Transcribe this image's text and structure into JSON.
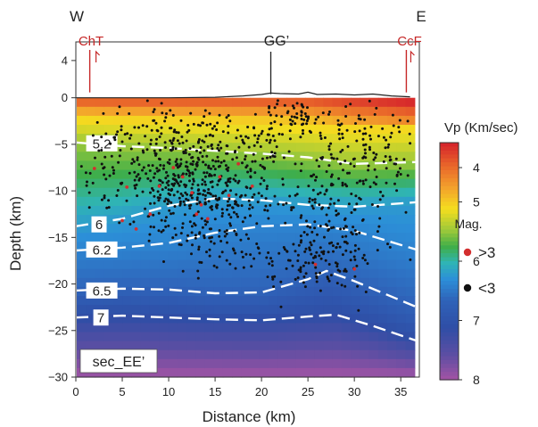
{
  "chart_data": {
    "type": "heatmap",
    "xlabel": "Distance (km)",
    "ylabel": "Depth (km)",
    "xlim": [
      0,
      37
    ],
    "ylim": [
      -30,
      6
    ],
    "x_ticks": [
      0,
      5,
      10,
      15,
      20,
      25,
      30,
      35
    ],
    "y_ticks": [
      4,
      0,
      -5,
      -10,
      -15,
      -20,
      -25,
      -30
    ],
    "x_tick_labels": [
      "0",
      "5",
      "10",
      "15",
      "20",
      "25",
      "30",
      "35"
    ],
    "y_tick_labels": [
      "4",
      "0",
      "−5",
      "−10",
      "−15",
      "−20",
      "−25",
      "−30"
    ],
    "section_label": "sec_EE’",
    "end_labels": {
      "west": "W",
      "east": "E"
    },
    "faults": [
      {
        "name": "ChT",
        "x": 1.5,
        "color": "#c62828"
      },
      {
        "name": "CcF",
        "x": 35.6,
        "color": "#c62828"
      }
    ],
    "station": {
      "name": "GG’",
      "x": 21
    },
    "topography": [
      [
        0,
        0
      ],
      [
        5,
        0
      ],
      [
        10,
        0
      ],
      [
        15,
        0.05
      ],
      [
        18,
        0.2
      ],
      [
        20,
        0.35
      ],
      [
        21,
        0.5
      ],
      [
        22,
        0.45
      ],
      [
        24,
        0.4
      ],
      [
        25,
        0.6
      ],
      [
        26,
        0.35
      ],
      [
        28,
        0.4
      ],
      [
        30,
        0.3
      ],
      [
        32,
        0.4
      ],
      [
        34,
        0.2
      ],
      [
        36,
        0.1
      ]
    ],
    "colorbar": {
      "title": "Vp (Km/sec)",
      "min": 4,
      "max": 8,
      "ticks": [
        4,
        5,
        6,
        7,
        8
      ],
      "tick_labels": [
        "4",
        "5",
        "6",
        "7",
        "8"
      ],
      "stops": [
        {
          "v": 3.6,
          "color": "#d6262b"
        },
        {
          "v": 4.0,
          "color": "#e9672a"
        },
        {
          "v": 4.4,
          "color": "#f3a12c"
        },
        {
          "v": 4.8,
          "color": "#f4de1f"
        },
        {
          "v": 5.2,
          "color": "#9bc83a"
        },
        {
          "v": 5.5,
          "color": "#3fae49"
        },
        {
          "v": 5.8,
          "color": "#2fb4b5"
        },
        {
          "v": 6.1,
          "color": "#2c8fd8"
        },
        {
          "v": 6.5,
          "color": "#2f62b8"
        },
        {
          "v": 7.0,
          "color": "#2f4ea6"
        },
        {
          "v": 7.5,
          "color": "#5c4ea3"
        },
        {
          "v": 8.0,
          "color": "#a853a4"
        }
      ]
    },
    "contours": [
      {
        "label": "5.2",
        "value": 5.2,
        "points": [
          [
            0,
            -4.8
          ],
          [
            5,
            -5.2
          ],
          [
            10,
            -5.4
          ],
          [
            15,
            -5.7
          ],
          [
            20,
            -6.0
          ],
          [
            25,
            -6.4
          ],
          [
            30,
            -7.1
          ],
          [
            37,
            -6.9
          ]
        ],
        "label_at": [
          2.8,
          -4.9
        ]
      },
      {
        "label": "6",
        "value": 6,
        "points": [
          [
            0,
            -13.8
          ],
          [
            5,
            -13.0
          ],
          [
            10,
            -11.6
          ],
          [
            15,
            -10.8
          ],
          [
            20,
            -11.0
          ],
          [
            25,
            -11.5
          ],
          [
            30,
            -11.7
          ],
          [
            37,
            -11.2
          ]
        ],
        "label_at": [
          2.5,
          -13.6
        ]
      },
      {
        "label": "6.2",
        "value": 6.2,
        "points": [
          [
            0,
            -16.4
          ],
          [
            5,
            -16.1
          ],
          [
            10,
            -15.6
          ],
          [
            15,
            -14.5
          ],
          [
            20,
            -13.8
          ],
          [
            25,
            -13.6
          ],
          [
            30,
            -14.3
          ],
          [
            37,
            -16.4
          ]
        ],
        "label_at": [
          2.8,
          -16.3
        ]
      },
      {
        "label": "6.5",
        "value": 6.5,
        "points": [
          [
            0,
            -20.7
          ],
          [
            5,
            -20.5
          ],
          [
            10,
            -20.6
          ],
          [
            15,
            -21.0
          ],
          [
            20,
            -20.9
          ],
          [
            25,
            -19.5
          ],
          [
            27,
            -18.6
          ],
          [
            30,
            -19.7
          ],
          [
            37,
            -22.6
          ]
        ],
        "label_at": [
          2.8,
          -20.7
        ]
      },
      {
        "label": "7",
        "value": 7,
        "points": [
          [
            0,
            -23.6
          ],
          [
            5,
            -23.4
          ],
          [
            10,
            -23.6
          ],
          [
            15,
            -23.8
          ],
          [
            20,
            -23.9
          ],
          [
            25,
            -23.5
          ],
          [
            28,
            -23.3
          ],
          [
            32,
            -24.5
          ],
          [
            37,
            -26.2
          ]
        ],
        "label_at": [
          2.7,
          -23.6
        ]
      }
    ],
    "legend": {
      "title": "Mag.",
      "items": [
        {
          "label": ">3",
          "color": "#d32f2f"
        },
        {
          "label": "<3",
          "color": "#111111"
        }
      ]
    },
    "events_large": [
      [
        2,
        -7.6
      ],
      [
        5.5,
        -9.6
      ],
      [
        5,
        -13.2
      ],
      [
        6.5,
        -14.1
      ],
      [
        8,
        -12.5
      ],
      [
        9,
        -9.5
      ],
      [
        10.5,
        -7.5
      ],
      [
        11.5,
        -8.5
      ],
      [
        12.5,
        -10.2
      ],
      [
        13.5,
        -11.5
      ],
      [
        14.2,
        -13
      ],
      [
        13,
        -12.5
      ],
      [
        15.5,
        -8.5
      ],
      [
        16.5,
        -10.5
      ],
      [
        17.5,
        -7.1
      ],
      [
        19,
        -9.5
      ],
      [
        25.8,
        -17.9
      ],
      [
        30,
        -18.4
      ]
    ]
  }
}
